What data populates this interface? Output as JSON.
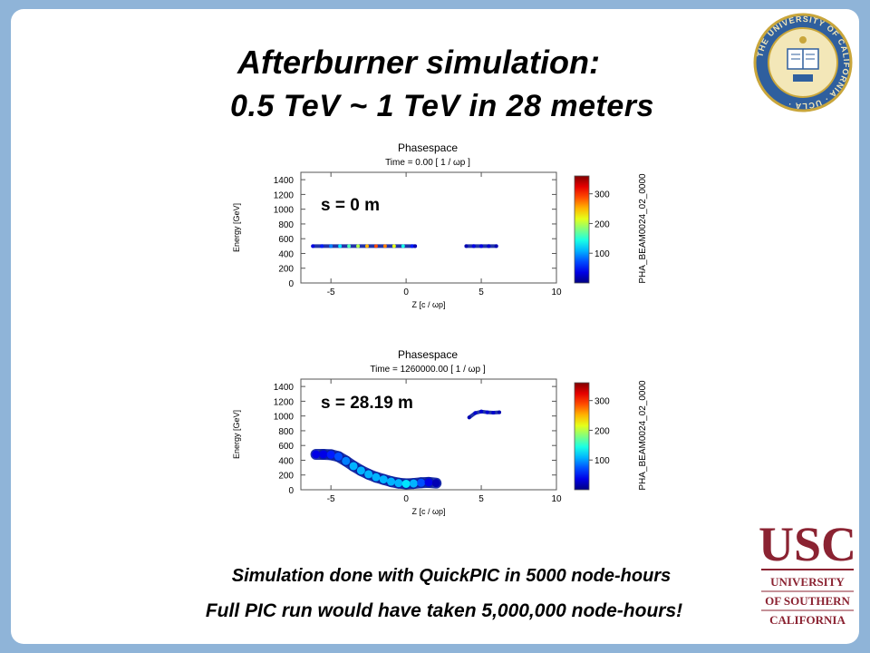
{
  "slide": {
    "title_line1": "Afterburner simulation:",
    "title_line2": "0.5 TeV ~ 1 TeV in 28 meters",
    "footer_line1": "Simulation done with QuickPIC in 5000 node-hours",
    "footer_line2": "Full PIC run would have taken 5,000,000 node-hours!"
  },
  "logos": {
    "ucla_seal_text": "THE UNIVERSITY OF CALIFORNIA · UCLA ·",
    "usc_main": "USC",
    "usc_line1": "UNIVERSITY",
    "usc_line2": "OF SOUTHERN",
    "usc_line3": "CALIFORNIA"
  },
  "colors": {
    "slide_border": "#8fb4d8",
    "usc_cardinal": "#8b2332",
    "ucla_blue": "#2f5f9e",
    "ucla_gold": "#c9a63b"
  },
  "chart_data": [
    {
      "type": "scatter",
      "title": "Phasespace",
      "subtitle": "Time =      0.00 [ 1 / ωp ]",
      "xlabel": "Z  [c / ωp]",
      "ylabel": "Energy  [GeV]",
      "panel_label": "s = 0 m",
      "colorbar_label": "PHA_BEAM0024_02_0000",
      "colorbar_ticks": [
        100,
        200,
        300
      ],
      "xlim": [
        -7,
        10
      ],
      "ylim": [
        0,
        1500
      ],
      "xticks": [
        -5,
        0,
        5,
        10
      ],
      "yticks": [
        0,
        200,
        400,
        600,
        800,
        1000,
        1200,
        1400
      ],
      "series": [
        {
          "points": [
            [
              -6.2,
              500,
              0.1
            ],
            [
              -5.6,
              500,
              0.15
            ],
            [
              -5.0,
              500,
              0.25
            ],
            [
              -4.4,
              500,
              0.35
            ],
            [
              -3.8,
              500,
              0.45
            ],
            [
              -3.2,
              500,
              0.55
            ],
            [
              -2.6,
              500,
              0.7
            ],
            [
              -2.0,
              500,
              0.8
            ],
            [
              -1.4,
              500,
              0.75
            ],
            [
              -0.8,
              500,
              0.6
            ],
            [
              -0.2,
              500,
              0.4
            ],
            [
              0.4,
              500,
              0.15
            ],
            [
              0.6,
              500,
              0.05
            ]
          ]
        },
        {
          "points": [
            [
              4.0,
              500,
              0.05
            ],
            [
              4.5,
              500,
              0.1
            ],
            [
              5.0,
              500,
              0.1
            ],
            [
              5.5,
              500,
              0.08
            ],
            [
              6.0,
              500,
              0.05
            ]
          ]
        }
      ]
    },
    {
      "type": "scatter",
      "title": "Phasespace",
      "subtitle": "Time = 1260000.00 [ 1 / ωp ]",
      "xlabel": "Z  [c / ωp]",
      "ylabel": "Energy  [GeV]",
      "panel_label": "s = 28.19 m",
      "colorbar_label": "PHA_BEAM0024_02_0000",
      "colorbar_ticks": [
        100,
        200,
        300
      ],
      "xlim": [
        -7,
        10
      ],
      "ylim": [
        0,
        1500
      ],
      "xticks": [
        -5,
        0,
        5,
        10
      ],
      "yticks": [
        0,
        200,
        400,
        600,
        800,
        1000,
        1200,
        1400
      ],
      "series": [
        {
          "points": [
            [
              -6.0,
              480,
              0.1
            ],
            [
              -5.5,
              480,
              0.1
            ],
            [
              -5.0,
              475,
              0.15
            ],
            [
              -4.5,
              450,
              0.2
            ],
            [
              -4.0,
              390,
              0.25
            ],
            [
              -3.5,
              320,
              0.3
            ],
            [
              -3.0,
              260,
              0.3
            ],
            [
              -2.5,
              210,
              0.3
            ],
            [
              -2.0,
              170,
              0.3
            ],
            [
              -1.5,
              140,
              0.3
            ],
            [
              -1.0,
              110,
              0.3
            ],
            [
              -0.5,
              90,
              0.3
            ],
            [
              0.0,
              80,
              0.35
            ],
            [
              0.5,
              85,
              0.3
            ],
            [
              1.0,
              95,
              0.2
            ],
            [
              1.5,
              100,
              0.1
            ],
            [
              2.0,
              90,
              0.05
            ]
          ]
        },
        {
          "points": [
            [
              4.2,
              980,
              0.05
            ],
            [
              4.6,
              1040,
              0.08
            ],
            [
              5.0,
              1060,
              0.08
            ],
            [
              5.4,
              1050,
              0.08
            ],
            [
              5.8,
              1045,
              0.08
            ],
            [
              6.2,
              1050,
              0.05
            ]
          ]
        }
      ]
    }
  ]
}
